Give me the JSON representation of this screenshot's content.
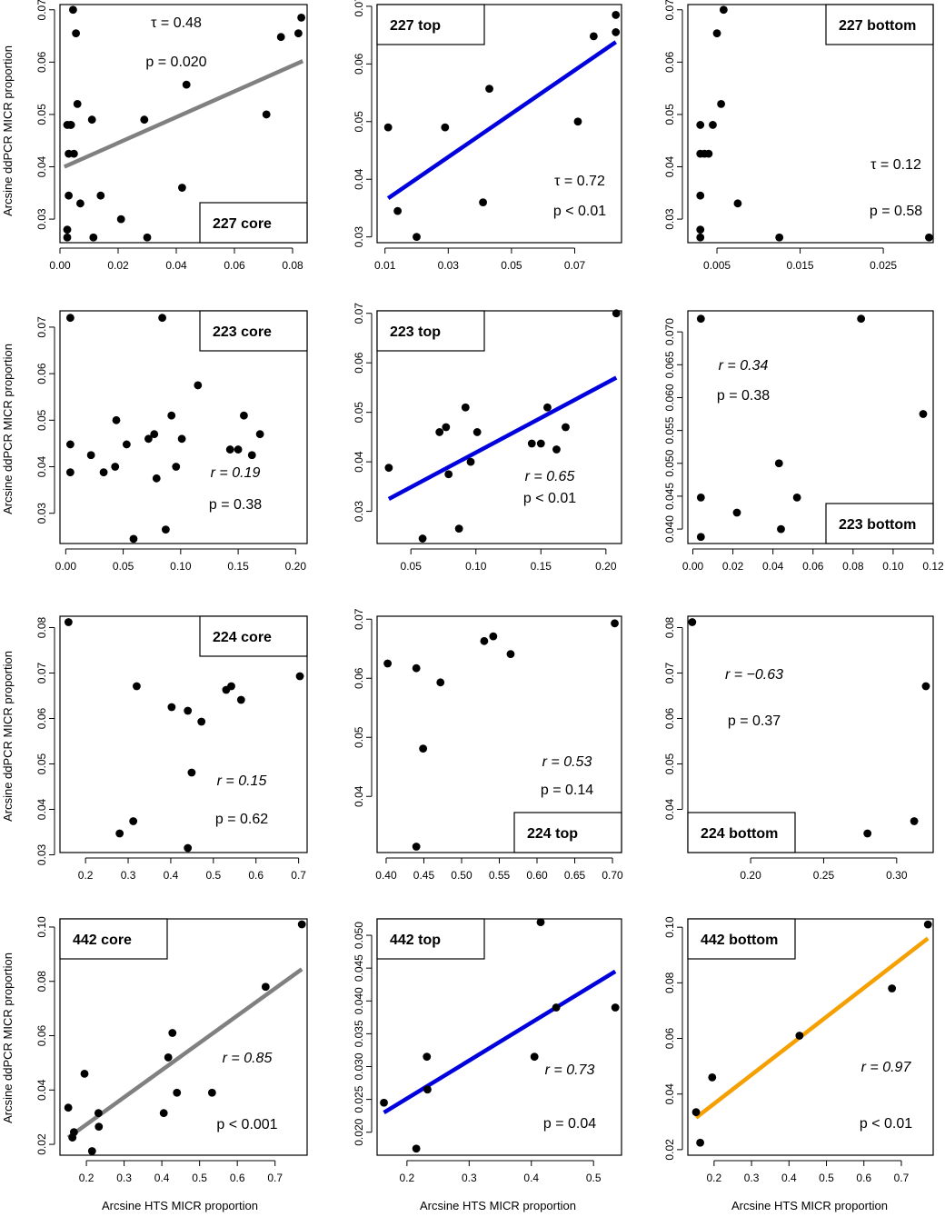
{
  "figure": {
    "ylabel": "Arcsine ddPCR MICR proportion",
    "xlabel": "Arcsine HTS MICR proportion"
  },
  "chart_data": [
    {
      "type": "scatter",
      "title": "227 core",
      "xlim": [
        0,
        0.085
      ],
      "ylim": [
        0.0255,
        0.071
      ],
      "xticks": [
        0.0,
        0.02,
        0.04,
        0.06,
        0.08
      ],
      "xtick_labels": [
        "0.00",
        "0.02",
        "0.04",
        "0.06",
        "0.08"
      ],
      "yticks": [
        0.03,
        0.04,
        0.05,
        0.06,
        0.07
      ],
      "ytick_labels": [
        "0.03",
        "0.04",
        "0.05",
        "0.06",
        "0.07"
      ],
      "x": [
        0.0045,
        0.0055,
        0.0038,
        0.0025,
        0.003,
        0.0048,
        0.0035,
        0.006,
        0.011,
        0.003,
        0.007,
        0.0025,
        0.014,
        0.0115,
        0.0025,
        0.029,
        0.021,
        0.03,
        0.0435,
        0.042,
        0.071,
        0.076,
        0.082,
        0.083
      ],
      "y": [
        0.07,
        0.0655,
        0.048,
        0.048,
        0.0425,
        0.0425,
        0.048,
        0.052,
        0.049,
        0.0345,
        0.033,
        0.028,
        0.0345,
        0.0265,
        0.0265,
        0.049,
        0.03,
        0.0265,
        0.0557,
        0.036,
        0.05,
        0.0648,
        0.0655,
        0.0685
      ],
      "fit": {
        "x": [
          0.0015,
          0.0835
        ],
        "y": [
          0.04,
          0.0602
        ],
        "color": "#808080"
      },
      "stats": [
        {
          "label": "τ = 0.48",
          "italic": false
        },
        {
          "label": "p = 0.020",
          "italic": false
        }
      ],
      "legend": "bottom-right"
    },
    {
      "type": "scatter",
      "title": "227 top",
      "xlim": [
        0.0075,
        0.0848
      ],
      "ylim": [
        0.029,
        0.0703
      ],
      "xticks": [
        0.01,
        0.03,
        0.05,
        0.07
      ],
      "xtick_labels": [
        "0.01",
        "0.03",
        "0.05",
        "0.07"
      ],
      "yticks": [
        0.03,
        0.04,
        0.05,
        0.06,
        0.07
      ],
      "ytick_labels": [
        "0.03",
        "0.04",
        "0.05",
        "0.06",
        "0.07"
      ],
      "x": [
        0.011,
        0.014,
        0.02,
        0.029,
        0.041,
        0.043,
        0.071,
        0.076,
        0.083,
        0.083
      ],
      "y": [
        0.049,
        0.0345,
        0.03,
        0.049,
        0.036,
        0.0557,
        0.05,
        0.0648,
        0.0655,
        0.0685
      ],
      "fit": {
        "x": [
          0.011,
          0.083
        ],
        "y": [
          0.0367,
          0.0638
        ],
        "color": "#0000dd"
      },
      "stats": [
        {
          "label": "τ = 0.72",
          "italic": false
        },
        {
          "label": "p < 0.01",
          "italic": false
        }
      ],
      "legend": "top-left"
    },
    {
      "type": "scatter",
      "title": "227 bottom",
      "xlim": [
        0.0015,
        0.031
      ],
      "ylim": [
        0.0255,
        0.071
      ],
      "xticks": [
        0.005,
        0.015,
        0.025
      ],
      "xtick_labels": [
        "0.005",
        "0.015",
        "0.025"
      ],
      "yticks": [
        0.03,
        0.04,
        0.05,
        0.06,
        0.07
      ],
      "ytick_labels": [
        "0.03",
        "0.04",
        "0.05",
        "0.06",
        "0.07"
      ],
      "x": [
        0.0058,
        0.005,
        0.0055,
        0.003,
        0.003,
        0.0035,
        0.004,
        0.0045,
        0.003,
        0.0075,
        0.003,
        0.003,
        0.0125,
        0.0305
      ],
      "y": [
        0.07,
        0.0655,
        0.052,
        0.048,
        0.0425,
        0.0425,
        0.0425,
        0.048,
        0.0345,
        0.033,
        0.028,
        0.0265,
        0.0265,
        0.0265
      ],
      "fit": null,
      "stats": [
        {
          "label": "τ = 0.12",
          "italic": false
        },
        {
          "label": "p = 0.58",
          "italic": false
        }
      ],
      "legend": "top-right"
    },
    {
      "type": "scatter",
      "title": "223 core",
      "xlim": [
        -0.005,
        0.21
      ],
      "ylim": [
        0.0235,
        0.0735
      ],
      "xticks": [
        0.0,
        0.05,
        0.1,
        0.15,
        0.2
      ],
      "xtick_labels": [
        "0.00",
        "0.05",
        "0.10",
        "0.15",
        "0.20"
      ],
      "yticks": [
        0.03,
        0.04,
        0.05,
        0.06,
        0.07
      ],
      "ytick_labels": [
        "0.03",
        "0.04",
        "0.05",
        "0.06",
        "0.07"
      ],
      "x": [
        0.004,
        0.084,
        0.004,
        0.004,
        0.022,
        0.033,
        0.043,
        0.044,
        0.053,
        0.059,
        0.072,
        0.077,
        0.079,
        0.087,
        0.092,
        0.096,
        0.101,
        0.115,
        0.143,
        0.15,
        0.155,
        0.162,
        0.169
      ],
      "y": [
        0.072,
        0.072,
        0.0448,
        0.0388,
        0.0425,
        0.0388,
        0.04,
        0.05,
        0.0448,
        0.0245,
        0.046,
        0.047,
        0.0375,
        0.0265,
        0.051,
        0.04,
        0.046,
        0.0575,
        0.0437,
        0.0437,
        0.051,
        0.0425,
        0.047
      ],
      "fit": null,
      "stats": [
        {
          "label": "r = 0.19",
          "italic": true
        },
        {
          "label": "p = 0.38",
          "italic": false
        }
      ],
      "legend": "top-right"
    },
    {
      "type": "scatter",
      "title": "223 top",
      "xlim": [
        0.024,
        0.212
      ],
      "ylim": [
        0.0235,
        0.0705
      ],
      "xticks": [
        0.05,
        0.1,
        0.15,
        0.2
      ],
      "xtick_labels": [
        "0.05",
        "0.10",
        "0.15",
        "0.20"
      ],
      "yticks": [
        0.03,
        0.04,
        0.05,
        0.06,
        0.07
      ],
      "ytick_labels": [
        "0.03",
        "0.04",
        "0.05",
        "0.06",
        "0.07"
      ],
      "x": [
        0.033,
        0.059,
        0.072,
        0.077,
        0.079,
        0.087,
        0.092,
        0.096,
        0.101,
        0.143,
        0.15,
        0.155,
        0.162,
        0.169,
        0.208
      ],
      "y": [
        0.0388,
        0.0245,
        0.046,
        0.047,
        0.0375,
        0.0265,
        0.051,
        0.04,
        0.046,
        0.0437,
        0.0437,
        0.051,
        0.0425,
        0.047,
        0.07
      ],
      "fit": {
        "x": [
          0.033,
          0.208
        ],
        "y": [
          0.0325,
          0.057
        ],
        "color": "#0000dd"
      },
      "stats": [
        {
          "label": "r = 0.65",
          "italic": true
        },
        {
          "label": "p < 0.01",
          "italic": false
        }
      ],
      "legend": "top-left"
    },
    {
      "type": "scatter",
      "title": "223 bottom",
      "xlim": [
        -0.0025,
        0.12
      ],
      "ylim": [
        0.0378,
        0.0732
      ],
      "xticks": [
        0.0,
        0.02,
        0.04,
        0.06,
        0.08,
        0.1,
        0.12
      ],
      "xtick_labels": [
        "0.00",
        "0.02",
        "0.04",
        "0.06",
        "0.08",
        "0.10",
        "0.12"
      ],
      "yticks": [
        0.04,
        0.045,
        0.05,
        0.055,
        0.06,
        0.065,
        0.07
      ],
      "ytick_labels": [
        "0.040",
        "0.045",
        "0.050",
        "0.055",
        "0.060",
        "0.065",
        "0.070"
      ],
      "x": [
        0.004,
        0.084,
        0.004,
        0.004,
        0.022,
        0.043,
        0.044,
        0.052,
        0.115
      ],
      "y": [
        0.072,
        0.072,
        0.0448,
        0.0388,
        0.0425,
        0.05,
        0.04,
        0.0448,
        0.0575
      ],
      "fit": null,
      "stats": [
        {
          "label": "r = 0.34",
          "italic": true
        },
        {
          "label": "p = 0.38",
          "italic": false
        }
      ],
      "legend": "bottom-right"
    },
    {
      "type": "scatter",
      "title": "224 core",
      "xlim": [
        0.14,
        0.72
      ],
      "ylim": [
        0.0305,
        0.0825
      ],
      "xticks": [
        0.2,
        0.3,
        0.4,
        0.5,
        0.6,
        0.7
      ],
      "xtick_labels": [
        "0.2",
        "0.3",
        "0.4",
        "0.5",
        "0.6",
        "0.7"
      ],
      "yticks": [
        0.03,
        0.04,
        0.05,
        0.06,
        0.07,
        0.08
      ],
      "ytick_labels": [
        "0.03",
        "0.04",
        "0.05",
        "0.06",
        "0.07",
        "0.08"
      ],
      "x": [
        0.16,
        0.28,
        0.312,
        0.32,
        0.402,
        0.44,
        0.449,
        0.472,
        0.53,
        0.542,
        0.565,
        0.703,
        0.44
      ],
      "y": [
        0.0812,
        0.0347,
        0.0374,
        0.0671,
        0.0625,
        0.0617,
        0.0481,
        0.0593,
        0.0663,
        0.0671,
        0.0641,
        0.0693,
        0.0315
      ],
      "fit": null,
      "stats": [
        {
          "label": "r = 0.15",
          "italic": true
        },
        {
          "label": "p = 0.62",
          "italic": false
        }
      ],
      "legend": "top-right"
    },
    {
      "type": "scatter",
      "title": "224 top",
      "xlim": [
        0.388,
        0.712
      ],
      "ylim": [
        0.0305,
        0.0705
      ],
      "xticks": [
        0.4,
        0.45,
        0.5,
        0.55,
        0.6,
        0.65,
        0.7
      ],
      "xtick_labels": [
        "0.40",
        "0.45",
        "0.50",
        "0.55",
        "0.60",
        "0.65",
        "0.70"
      ],
      "yticks": [
        0.04,
        0.05,
        0.06,
        0.07
      ],
      "ytick_labels": [
        "0.04",
        "0.05",
        "0.06",
        "0.07"
      ],
      "x": [
        0.402,
        0.44,
        0.44,
        0.449,
        0.472,
        0.53,
        0.542,
        0.565,
        0.703
      ],
      "y": [
        0.0625,
        0.0617,
        0.0315,
        0.0481,
        0.0593,
        0.0663,
        0.0671,
        0.0641,
        0.0693
      ],
      "fit": null,
      "stats": [
        {
          "label": "r = 0.53",
          "italic": true
        },
        {
          "label": "p = 0.14",
          "italic": false
        }
      ],
      "legend": "bottom-right"
    },
    {
      "type": "scatter",
      "title": "224 bottom",
      "xlim": [
        0.157,
        0.325
      ],
      "ylim": [
        0.0305,
        0.0825
      ],
      "xticks": [
        0.2,
        0.25,
        0.3
      ],
      "xtick_labels": [
        "0.20",
        "0.25",
        "0.30"
      ],
      "yticks": [
        0.04,
        0.05,
        0.06,
        0.07,
        0.08
      ],
      "ytick_labels": [
        "0.04",
        "0.05",
        "0.06",
        "0.07",
        "0.08"
      ],
      "x": [
        0.16,
        0.28,
        0.312,
        0.32
      ],
      "y": [
        0.0812,
        0.0347,
        0.0374,
        0.0671
      ],
      "fit": null,
      "stats": [
        {
          "label": "r = −0.63",
          "italic": true
        },
        {
          "label": "p = 0.37",
          "italic": false
        }
      ],
      "legend": "bottom-left"
    },
    {
      "type": "scatter",
      "title": "442 core",
      "xlim": [
        0.13,
        0.785
      ],
      "ylim": [
        0.016,
        0.103
      ],
      "xticks": [
        0.2,
        0.3,
        0.4,
        0.5,
        0.6,
        0.7
      ],
      "xtick_labels": [
        "0.2",
        "0.3",
        "0.4",
        "0.5",
        "0.6",
        "0.7"
      ],
      "yticks": [
        0.02,
        0.04,
        0.06,
        0.08,
        0.1
      ],
      "ytick_labels": [
        "0.02",
        "0.04",
        "0.06",
        "0.08",
        "0.10"
      ],
      "x": [
        0.152,
        0.163,
        0.167,
        0.195,
        0.215,
        0.232,
        0.233,
        0.405,
        0.417,
        0.428,
        0.44,
        0.533,
        0.675,
        0.771
      ],
      "y": [
        0.0335,
        0.0225,
        0.0245,
        0.046,
        0.0175,
        0.0315,
        0.0265,
        0.0315,
        0.052,
        0.061,
        0.039,
        0.039,
        0.078,
        0.101
      ],
      "fit": {
        "x": [
          0.152,
          0.771
        ],
        "y": [
          0.0225,
          0.0845
        ],
        "color": "#808080"
      },
      "stats": [
        {
          "label": "r = 0.85",
          "italic": true
        },
        {
          "label": "p < 0.001",
          "italic": false
        }
      ],
      "legend": "top-left"
    },
    {
      "type": "scatter",
      "title": "442 top",
      "xlim": [
        0.152,
        0.545
      ],
      "ylim": [
        0.0165,
        0.0525
      ],
      "xticks": [
        0.2,
        0.3,
        0.4,
        0.5
      ],
      "xtick_labels": [
        "0.2",
        "0.3",
        "0.4",
        "0.5"
      ],
      "yticks": [
        0.02,
        0.025,
        0.03,
        0.035,
        0.04,
        0.045,
        0.05
      ],
      "ytick_labels": [
        "0.020",
        "0.025",
        "0.030",
        "0.035",
        "0.040",
        "0.045",
        "0.050"
      ],
      "x": [
        0.163,
        0.215,
        0.232,
        0.233,
        0.405,
        0.415,
        0.44,
        0.535
      ],
      "y": [
        0.0245,
        0.0175,
        0.0315,
        0.0265,
        0.0315,
        0.052,
        0.039,
        0.039
      ],
      "fit": {
        "x": [
          0.163,
          0.535
        ],
        "y": [
          0.023,
          0.0445
        ],
        "color": "#0000dd"
      },
      "stats": [
        {
          "label": "r = 0.73",
          "italic": true
        },
        {
          "label": "p = 0.04",
          "italic": false
        }
      ],
      "legend": "top-left"
    },
    {
      "type": "scatter",
      "title": "442 bottom",
      "xlim": [
        0.13,
        0.785
      ],
      "ylim": [
        0.018,
        0.103
      ],
      "xticks": [
        0.2,
        0.3,
        0.4,
        0.5,
        0.6,
        0.7
      ],
      "xtick_labels": [
        "0.2",
        "0.3",
        "0.4",
        "0.5",
        "0.6",
        "0.7"
      ],
      "yticks": [
        0.02,
        0.04,
        0.06,
        0.08,
        0.1
      ],
      "ytick_labels": [
        "0.02",
        "0.04",
        "0.06",
        "0.08",
        "0.10"
      ],
      "x": [
        0.152,
        0.163,
        0.195,
        0.428,
        0.675,
        0.771
      ],
      "y": [
        0.0335,
        0.0225,
        0.046,
        0.061,
        0.078,
        0.101
      ],
      "fit": {
        "x": [
          0.152,
          0.771
        ],
        "y": [
          0.0315,
          0.096
        ],
        "color": "#f5a000"
      },
      "stats": [
        {
          "label": "r = 0.97",
          "italic": true
        },
        {
          "label": "p < 0.01",
          "italic": false
        }
      ],
      "legend": "top-left"
    }
  ]
}
